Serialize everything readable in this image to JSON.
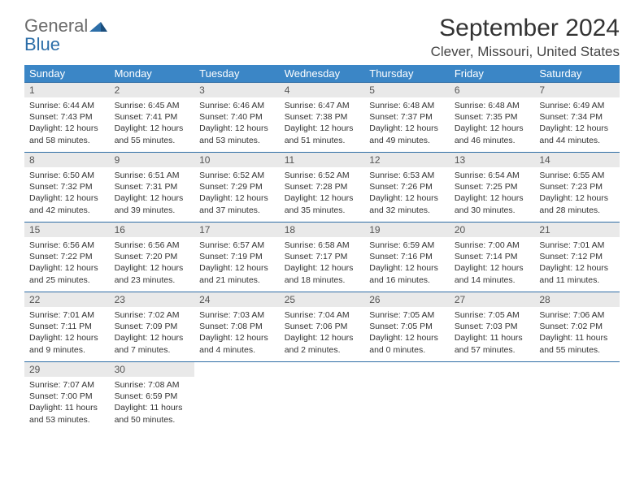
{
  "brand": {
    "name_gray": "General",
    "name_blue": "Blue"
  },
  "title": "September 2024",
  "location": "Clever, Missouri, United States",
  "colors": {
    "header_bg": "#3b86c6",
    "header_text": "#ffffff",
    "daynum_bg": "#e9e9e9",
    "cell_border": "#2f6da5",
    "page_bg": "#ffffff",
    "body_text": "#333333"
  },
  "typography": {
    "title_fontsize": 30,
    "location_fontsize": 17,
    "header_fontsize": 13,
    "body_fontsize": 10.5,
    "font_family": "Arial"
  },
  "weekdays": [
    "Sunday",
    "Monday",
    "Tuesday",
    "Wednesday",
    "Thursday",
    "Friday",
    "Saturday"
  ],
  "days": [
    {
      "n": 1,
      "sr": "Sunrise: 6:44 AM",
      "ss": "Sunset: 7:43 PM",
      "d1": "Daylight: 12 hours",
      "d2": "and 58 minutes."
    },
    {
      "n": 2,
      "sr": "Sunrise: 6:45 AM",
      "ss": "Sunset: 7:41 PM",
      "d1": "Daylight: 12 hours",
      "d2": "and 55 minutes."
    },
    {
      "n": 3,
      "sr": "Sunrise: 6:46 AM",
      "ss": "Sunset: 7:40 PM",
      "d1": "Daylight: 12 hours",
      "d2": "and 53 minutes."
    },
    {
      "n": 4,
      "sr": "Sunrise: 6:47 AM",
      "ss": "Sunset: 7:38 PM",
      "d1": "Daylight: 12 hours",
      "d2": "and 51 minutes."
    },
    {
      "n": 5,
      "sr": "Sunrise: 6:48 AM",
      "ss": "Sunset: 7:37 PM",
      "d1": "Daylight: 12 hours",
      "d2": "and 49 minutes."
    },
    {
      "n": 6,
      "sr": "Sunrise: 6:48 AM",
      "ss": "Sunset: 7:35 PM",
      "d1": "Daylight: 12 hours",
      "d2": "and 46 minutes."
    },
    {
      "n": 7,
      "sr": "Sunrise: 6:49 AM",
      "ss": "Sunset: 7:34 PM",
      "d1": "Daylight: 12 hours",
      "d2": "and 44 minutes."
    },
    {
      "n": 8,
      "sr": "Sunrise: 6:50 AM",
      "ss": "Sunset: 7:32 PM",
      "d1": "Daylight: 12 hours",
      "d2": "and 42 minutes."
    },
    {
      "n": 9,
      "sr": "Sunrise: 6:51 AM",
      "ss": "Sunset: 7:31 PM",
      "d1": "Daylight: 12 hours",
      "d2": "and 39 minutes."
    },
    {
      "n": 10,
      "sr": "Sunrise: 6:52 AM",
      "ss": "Sunset: 7:29 PM",
      "d1": "Daylight: 12 hours",
      "d2": "and 37 minutes."
    },
    {
      "n": 11,
      "sr": "Sunrise: 6:52 AM",
      "ss": "Sunset: 7:28 PM",
      "d1": "Daylight: 12 hours",
      "d2": "and 35 minutes."
    },
    {
      "n": 12,
      "sr": "Sunrise: 6:53 AM",
      "ss": "Sunset: 7:26 PM",
      "d1": "Daylight: 12 hours",
      "d2": "and 32 minutes."
    },
    {
      "n": 13,
      "sr": "Sunrise: 6:54 AM",
      "ss": "Sunset: 7:25 PM",
      "d1": "Daylight: 12 hours",
      "d2": "and 30 minutes."
    },
    {
      "n": 14,
      "sr": "Sunrise: 6:55 AM",
      "ss": "Sunset: 7:23 PM",
      "d1": "Daylight: 12 hours",
      "d2": "and 28 minutes."
    },
    {
      "n": 15,
      "sr": "Sunrise: 6:56 AM",
      "ss": "Sunset: 7:22 PM",
      "d1": "Daylight: 12 hours",
      "d2": "and 25 minutes."
    },
    {
      "n": 16,
      "sr": "Sunrise: 6:56 AM",
      "ss": "Sunset: 7:20 PM",
      "d1": "Daylight: 12 hours",
      "d2": "and 23 minutes."
    },
    {
      "n": 17,
      "sr": "Sunrise: 6:57 AM",
      "ss": "Sunset: 7:19 PM",
      "d1": "Daylight: 12 hours",
      "d2": "and 21 minutes."
    },
    {
      "n": 18,
      "sr": "Sunrise: 6:58 AM",
      "ss": "Sunset: 7:17 PM",
      "d1": "Daylight: 12 hours",
      "d2": "and 18 minutes."
    },
    {
      "n": 19,
      "sr": "Sunrise: 6:59 AM",
      "ss": "Sunset: 7:16 PM",
      "d1": "Daylight: 12 hours",
      "d2": "and 16 minutes."
    },
    {
      "n": 20,
      "sr": "Sunrise: 7:00 AM",
      "ss": "Sunset: 7:14 PM",
      "d1": "Daylight: 12 hours",
      "d2": "and 14 minutes."
    },
    {
      "n": 21,
      "sr": "Sunrise: 7:01 AM",
      "ss": "Sunset: 7:12 PM",
      "d1": "Daylight: 12 hours",
      "d2": "and 11 minutes."
    },
    {
      "n": 22,
      "sr": "Sunrise: 7:01 AM",
      "ss": "Sunset: 7:11 PM",
      "d1": "Daylight: 12 hours",
      "d2": "and 9 minutes."
    },
    {
      "n": 23,
      "sr": "Sunrise: 7:02 AM",
      "ss": "Sunset: 7:09 PM",
      "d1": "Daylight: 12 hours",
      "d2": "and 7 minutes."
    },
    {
      "n": 24,
      "sr": "Sunrise: 7:03 AM",
      "ss": "Sunset: 7:08 PM",
      "d1": "Daylight: 12 hours",
      "d2": "and 4 minutes."
    },
    {
      "n": 25,
      "sr": "Sunrise: 7:04 AM",
      "ss": "Sunset: 7:06 PM",
      "d1": "Daylight: 12 hours",
      "d2": "and 2 minutes."
    },
    {
      "n": 26,
      "sr": "Sunrise: 7:05 AM",
      "ss": "Sunset: 7:05 PM",
      "d1": "Daylight: 12 hours",
      "d2": "and 0 minutes."
    },
    {
      "n": 27,
      "sr": "Sunrise: 7:05 AM",
      "ss": "Sunset: 7:03 PM",
      "d1": "Daylight: 11 hours",
      "d2": "and 57 minutes."
    },
    {
      "n": 28,
      "sr": "Sunrise: 7:06 AM",
      "ss": "Sunset: 7:02 PM",
      "d1": "Daylight: 11 hours",
      "d2": "and 55 minutes."
    },
    {
      "n": 29,
      "sr": "Sunrise: 7:07 AM",
      "ss": "Sunset: 7:00 PM",
      "d1": "Daylight: 11 hours",
      "d2": "and 53 minutes."
    },
    {
      "n": 30,
      "sr": "Sunrise: 7:08 AM",
      "ss": "Sunset: 6:59 PM",
      "d1": "Daylight: 11 hours",
      "d2": "and 50 minutes."
    }
  ],
  "layout": {
    "first_day_column": 0,
    "total_days": 30,
    "columns": 7
  }
}
